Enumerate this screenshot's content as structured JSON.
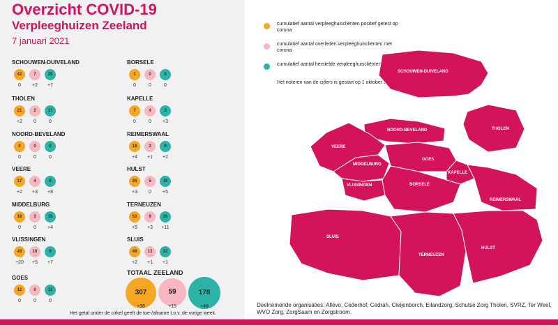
{
  "header": {
    "title": "Overzicht COVID-19",
    "subtitle": "Verpleeghuizen Zeeland",
    "date": "7 januari 2021"
  },
  "colors": {
    "brand": "#d4145a",
    "positief": "#f5a623",
    "overleden": "#f6b7c0",
    "hersteld": "#2ab3a6"
  },
  "municipalities": [
    {
      "name": "SCHOUWEN-DUIVELAND",
      "values": [
        "42",
        "7",
        "29"
      ],
      "deltas": [
        "0",
        "+2",
        "+7"
      ]
    },
    {
      "name": "THOLEN",
      "values": [
        "21",
        "2",
        "17"
      ],
      "deltas": [
        "+2",
        "0",
        "0"
      ]
    },
    {
      "name": "NOORD-BEVELAND",
      "values": [
        "0",
        "0",
        "0"
      ],
      "deltas": [
        "0",
        "0",
        "0"
      ]
    },
    {
      "name": "VEERE",
      "values": [
        "17",
        "4",
        "9"
      ],
      "deltas": [
        "+2",
        "+3",
        "+8"
      ]
    },
    {
      "name": "MIDDELBURG",
      "values": [
        "18",
        "3",
        "15"
      ],
      "deltas": [
        "0",
        "0",
        "+4"
      ]
    },
    {
      "name": "VLISSINGEN",
      "values": [
        "43",
        "10",
        "9"
      ],
      "deltas": [
        "+20",
        "+5",
        "+7"
      ]
    },
    {
      "name": "GOES",
      "values": [
        "12",
        "0",
        "11"
      ],
      "deltas": [
        "0",
        "0",
        "0"
      ]
    },
    {
      "name": "BORSELE",
      "values": [
        "1",
        "0",
        "0"
      ],
      "deltas": [
        "0",
        "0",
        "0"
      ]
    },
    {
      "name": "KAPELLE",
      "values": [
        "7",
        "4",
        "3"
      ],
      "deltas": [
        "0",
        "0",
        "+3"
      ]
    },
    {
      "name": "REIMERSWAAL",
      "values": [
        "18",
        "2",
        "9"
      ],
      "deltas": [
        "+4",
        "+1",
        "+2"
      ]
    },
    {
      "name": "HULST",
      "values": [
        "26",
        "5",
        "18"
      ],
      "deltas": [
        "+3",
        "0",
        "+5"
      ]
    },
    {
      "name": "TERNEUZEN",
      "values": [
        "53",
        "9",
        "26"
      ],
      "deltas": [
        "+5",
        "+3",
        "+11"
      ]
    },
    {
      "name": "SLUIS",
      "values": [
        "49",
        "13",
        "32"
      ],
      "deltas": [
        "+2",
        "+1",
        "+1"
      ]
    }
  ],
  "total": {
    "title": "TOTAAL ZEELAND",
    "values": [
      "307",
      "59",
      "178"
    ],
    "deltas": [
      "+38",
      "+15",
      "+48"
    ]
  },
  "footnote": "Het getal onder de cirkel geeft de toe-/afname t.o.v. de vorige week.",
  "legend": {
    "items": [
      {
        "text": "cumulatief aantal verpleeghuiscliënten positief getest op corona",
        "color": "#f5a623"
      },
      {
        "text": "cumulatief aantal overleden verpleeghuiscliënten met corona",
        "color": "#f6b7c0"
      },
      {
        "text": "cumulatief aantal herstelde verpleeghuiscliënten",
        "color": "#2ab3a6"
      }
    ],
    "note": "Het noteren van de cijfers is gestart op 1 oktober 2020"
  },
  "map": {
    "labels": [
      "SCHOUWEN-DUIVELAND",
      "NOORD-BEVELAND",
      "THOLEN",
      "VEERE",
      "MIDDELBURG",
      "GOES",
      "KAPELLE",
      "VLISSINGEN",
      "BORSELE",
      "REIMERSWAAL",
      "SLUIS",
      "TERNEUZEN",
      "HULST"
    ]
  },
  "organisations": "Deelnemende organisaties: Allévo, Cederhof, Cedrah, Cleijenborch, Eilandzorg, Schutse Zorg Tholen, SVRZ, Ter Weel, WVO Zorg, ZorgSaam en Zorgstroom."
}
